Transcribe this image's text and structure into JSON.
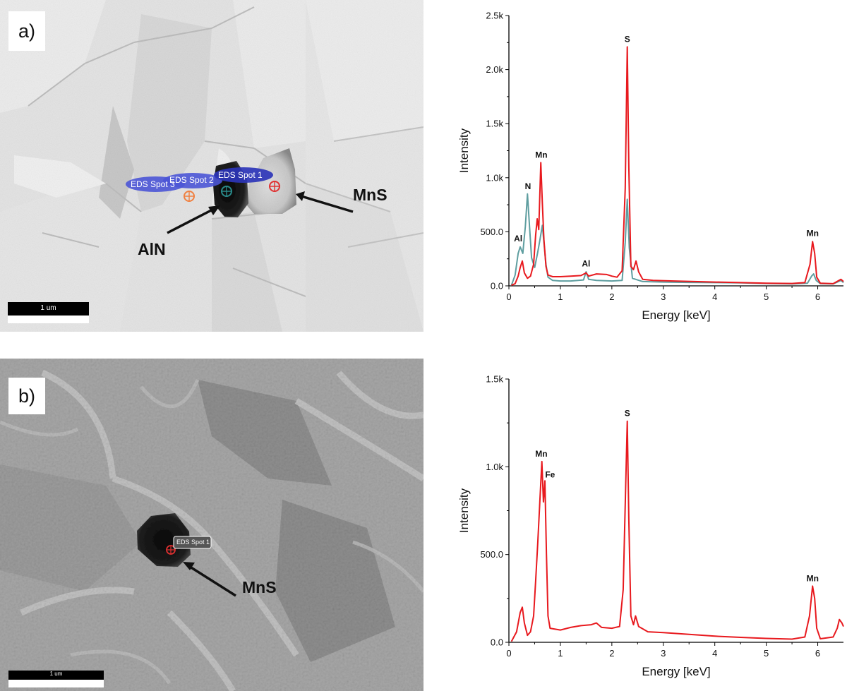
{
  "panel_a": {
    "label": "a)",
    "micrograph": {
      "spots": [
        {
          "label": "EDS Spot 1",
          "marker_color": "#e03030"
        },
        {
          "label": "EDS Spot 2",
          "marker_color": "#2a8a8a"
        },
        {
          "label": "EDS Spot 3",
          "marker_color": "#f08040"
        }
      ],
      "annotations": [
        "MnS",
        "AlN"
      ],
      "scale_bar": "1 um"
    }
  },
  "panel_b": {
    "label": "b)",
    "micrograph": {
      "spots": [
        {
          "label": "EDS Spot 1",
          "marker_color": "#e03030"
        }
      ],
      "annotations": [
        "MnS"
      ],
      "scale_bar": "1 um"
    }
  },
  "chart_data": [
    {
      "type": "line",
      "xlabel": "Energy [keV]",
      "ylabel": "Intensity",
      "xlim": [
        0,
        6.5
      ],
      "ylim": [
        0,
        2500
      ],
      "x_ticks": [
        0,
        1,
        2,
        3,
        4,
        5,
        6
      ],
      "y_ticks": [
        0,
        500,
        1000,
        1500,
        2000,
        2500
      ],
      "y_tick_labels": [
        "0.0",
        "500.0",
        "1.0k",
        "1.5k",
        "2.0k",
        "2.5k"
      ],
      "series": [
        {
          "color": "#e8191e",
          "points": [
            [
              0.05,
              5
            ],
            [
              0.12,
              20
            ],
            [
              0.18,
              90
            ],
            [
              0.22,
              170
            ],
            [
              0.26,
              230
            ],
            [
              0.3,
              120
            ],
            [
              0.36,
              70
            ],
            [
              0.42,
              90
            ],
            [
              0.48,
              200
            ],
            [
              0.52,
              470
            ],
            [
              0.55,
              620
            ],
            [
              0.58,
              520
            ],
            [
              0.62,
              1140
            ],
            [
              0.65,
              760
            ],
            [
              0.68,
              430
            ],
            [
              0.72,
              180
            ],
            [
              0.76,
              100
            ],
            [
              0.85,
              85
            ],
            [
              1.0,
              85
            ],
            [
              1.2,
              90
            ],
            [
              1.4,
              95
            ],
            [
              1.5,
              120
            ],
            [
              1.55,
              90
            ],
            [
              1.7,
              110
            ],
            [
              1.9,
              105
            ],
            [
              2.0,
              90
            ],
            [
              2.1,
              80
            ],
            [
              2.2,
              140
            ],
            [
              2.26,
              900
            ],
            [
              2.3,
              2210
            ],
            [
              2.33,
              1100
            ],
            [
              2.37,
              180
            ],
            [
              2.42,
              150
            ],
            [
              2.47,
              230
            ],
            [
              2.52,
              130
            ],
            [
              2.6,
              60
            ],
            [
              2.8,
              50
            ],
            [
              3.2,
              45
            ],
            [
              3.6,
              40
            ],
            [
              4.0,
              35
            ],
            [
              4.5,
              30
            ],
            [
              5.0,
              25
            ],
            [
              5.5,
              22
            ],
            [
              5.75,
              30
            ],
            [
              5.85,
              200
            ],
            [
              5.9,
              410
            ],
            [
              5.94,
              300
            ],
            [
              5.98,
              80
            ],
            [
              6.05,
              25
            ],
            [
              6.3,
              20
            ],
            [
              6.45,
              60
            ],
            [
              6.5,
              40
            ]
          ]
        },
        {
          "color": "#5f9ea0",
          "points": [
            [
              0.05,
              5
            ],
            [
              0.12,
              100
            ],
            [
              0.18,
              300
            ],
            [
              0.22,
              360
            ],
            [
              0.27,
              300
            ],
            [
              0.32,
              550
            ],
            [
              0.36,
              850
            ],
            [
              0.4,
              550
            ],
            [
              0.44,
              260
            ],
            [
              0.5,
              170
            ],
            [
              0.56,
              310
            ],
            [
              0.6,
              420
            ],
            [
              0.65,
              560
            ],
            [
              0.68,
              400
            ],
            [
              0.72,
              200
            ],
            [
              0.76,
              80
            ],
            [
              0.85,
              50
            ],
            [
              1.0,
              45
            ],
            [
              1.2,
              45
            ],
            [
              1.45,
              55
            ],
            [
              1.5,
              130
            ],
            [
              1.55,
              60
            ],
            [
              1.7,
              50
            ],
            [
              2.0,
              45
            ],
            [
              2.2,
              50
            ],
            [
              2.26,
              400
            ],
            [
              2.3,
              800
            ],
            [
              2.34,
              350
            ],
            [
              2.4,
              70
            ],
            [
              2.6,
              40
            ],
            [
              3.0,
              35
            ],
            [
              3.5,
              32
            ],
            [
              4.0,
              30
            ],
            [
              4.5,
              28
            ],
            [
              5.0,
              22
            ],
            [
              5.5,
              18
            ],
            [
              5.8,
              25
            ],
            [
              5.88,
              90
            ],
            [
              5.92,
              110
            ],
            [
              5.97,
              50
            ],
            [
              6.05,
              20
            ],
            [
              6.3,
              18
            ],
            [
              6.45,
              50
            ],
            [
              6.5,
              30
            ]
          ]
        }
      ],
      "peak_labels": [
        {
          "text": "S",
          "x": 2.3,
          "y": 2210
        },
        {
          "text": "Mn",
          "x": 0.63,
          "y": 1140
        },
        {
          "text": "N",
          "x": 0.37,
          "y": 850
        },
        {
          "text": "Al",
          "x": 0.18,
          "y": 365
        },
        {
          "text": "Al",
          "x": 1.5,
          "y": 135
        },
        {
          "text": "Mn",
          "x": 5.9,
          "y": 415
        }
      ]
    },
    {
      "type": "line",
      "xlabel": "Energy [keV]",
      "ylabel": "Intensity",
      "xlim": [
        0,
        6.5
      ],
      "ylim": [
        0,
        1500
      ],
      "x_ticks": [
        0,
        1,
        2,
        3,
        4,
        5,
        6
      ],
      "y_ticks": [
        0,
        500,
        1000,
        1500
      ],
      "y_tick_labels": [
        "0.0",
        "500.0",
        "1.0k",
        "1.5k"
      ],
      "series": [
        {
          "color": "#e8191e",
          "points": [
            [
              0.05,
              5
            ],
            [
              0.15,
              60
            ],
            [
              0.22,
              170
            ],
            [
              0.26,
              200
            ],
            [
              0.3,
              110
            ],
            [
              0.36,
              40
            ],
            [
              0.42,
              60
            ],
            [
              0.48,
              150
            ],
            [
              0.52,
              350
            ],
            [
              0.56,
              560
            ],
            [
              0.6,
              800
            ],
            [
              0.64,
              1030
            ],
            [
              0.67,
              800
            ],
            [
              0.7,
              920
            ],
            [
              0.73,
              500
            ],
            [
              0.76,
              150
            ],
            [
              0.8,
              80
            ],
            [
              1.0,
              70
            ],
            [
              1.2,
              85
            ],
            [
              1.4,
              95
            ],
            [
              1.6,
              100
            ],
            [
              1.7,
              110
            ],
            [
              1.8,
              85
            ],
            [
              2.0,
              80
            ],
            [
              2.15,
              90
            ],
            [
              2.22,
              300
            ],
            [
              2.27,
              900
            ],
            [
              2.3,
              1260
            ],
            [
              2.33,
              700
            ],
            [
              2.37,
              150
            ],
            [
              2.42,
              100
            ],
            [
              2.46,
              150
            ],
            [
              2.52,
              90
            ],
            [
              2.7,
              60
            ],
            [
              3.0,
              55
            ],
            [
              3.5,
              45
            ],
            [
              4.0,
              35
            ],
            [
              4.5,
              28
            ],
            [
              5.0,
              22
            ],
            [
              5.5,
              18
            ],
            [
              5.75,
              30
            ],
            [
              5.84,
              150
            ],
            [
              5.9,
              320
            ],
            [
              5.94,
              250
            ],
            [
              5.98,
              80
            ],
            [
              6.05,
              20
            ],
            [
              6.3,
              30
            ],
            [
              6.38,
              80
            ],
            [
              6.42,
              130
            ],
            [
              6.47,
              110
            ],
            [
              6.5,
              90
            ]
          ]
        }
      ],
      "peak_labels": [
        {
          "text": "S",
          "x": 2.3,
          "y": 1260
        },
        {
          "text": "Mn",
          "x": 0.63,
          "y": 1030
        },
        {
          "text": "Fe",
          "x": 0.8,
          "y": 910
        },
        {
          "text": "Mn",
          "x": 5.9,
          "y": 320
        }
      ]
    }
  ]
}
